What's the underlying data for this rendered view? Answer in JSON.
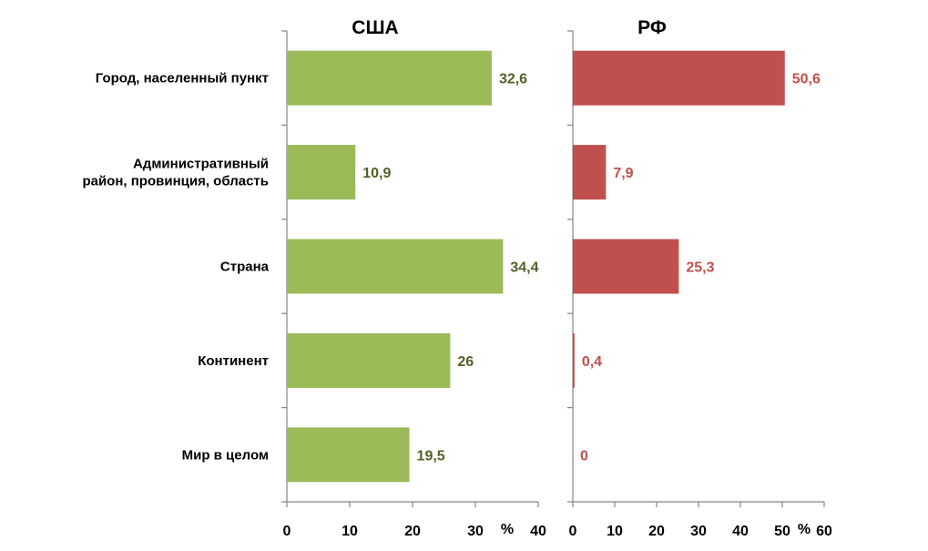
{
  "chart_data": {
    "type": "bar",
    "orientation": "horizontal",
    "categories": [
      [
        "Город, населенный пункт"
      ],
      [
        "Административный",
        "район, провинция, область"
      ],
      [
        "Страна"
      ],
      [
        "Континент"
      ],
      [
        "Мир в целом"
      ]
    ],
    "panels": [
      {
        "title": "США",
        "unit": "%",
        "color": "#9BBB59",
        "label_color": "#4F6228",
        "xlim": [
          0,
          40
        ],
        "ticks": [
          0,
          10,
          20,
          30,
          40
        ],
        "values": [
          32.6,
          10.9,
          34.4,
          26,
          19.5
        ],
        "value_labels": [
          "32,6",
          "10,9",
          "34,4",
          "26",
          "19,5"
        ]
      },
      {
        "title": "РФ",
        "unit": "%",
        "color": "#C0504D",
        "label_color": "#C0504D",
        "xlim": [
          0,
          60
        ],
        "ticks": [
          0,
          10,
          20,
          30,
          40,
          50,
          60
        ],
        "values": [
          50.6,
          7.9,
          25.3,
          0.4,
          0
        ],
        "value_labels": [
          "50,6",
          "7,9",
          "25,3",
          "0,4",
          "0"
        ]
      }
    ]
  }
}
